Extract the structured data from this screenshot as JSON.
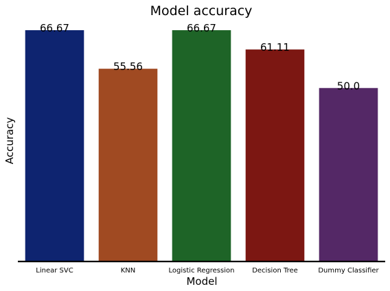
{
  "chart_data": {
    "type": "bar",
    "title": "Model accuracy",
    "xlabel": "Model",
    "ylabel": "Accuracy",
    "categories": [
      "Linear SVC",
      "KNN",
      "Logistic Regression",
      "Decision Tree",
      "Dummy Classifier"
    ],
    "values": [
      66.67,
      55.56,
      66.67,
      61.11,
      50.0
    ],
    "value_labels": [
      "66.67",
      "55.56",
      "66.67",
      "61.11",
      "50.0"
    ],
    "colors": [
      "#0e2470",
      "#a04a22",
      "#1e6427",
      "#7c1712",
      "#542866"
    ],
    "ylim": [
      0,
      66.67
    ],
    "grid": false,
    "y_ticks_visible": false
  }
}
